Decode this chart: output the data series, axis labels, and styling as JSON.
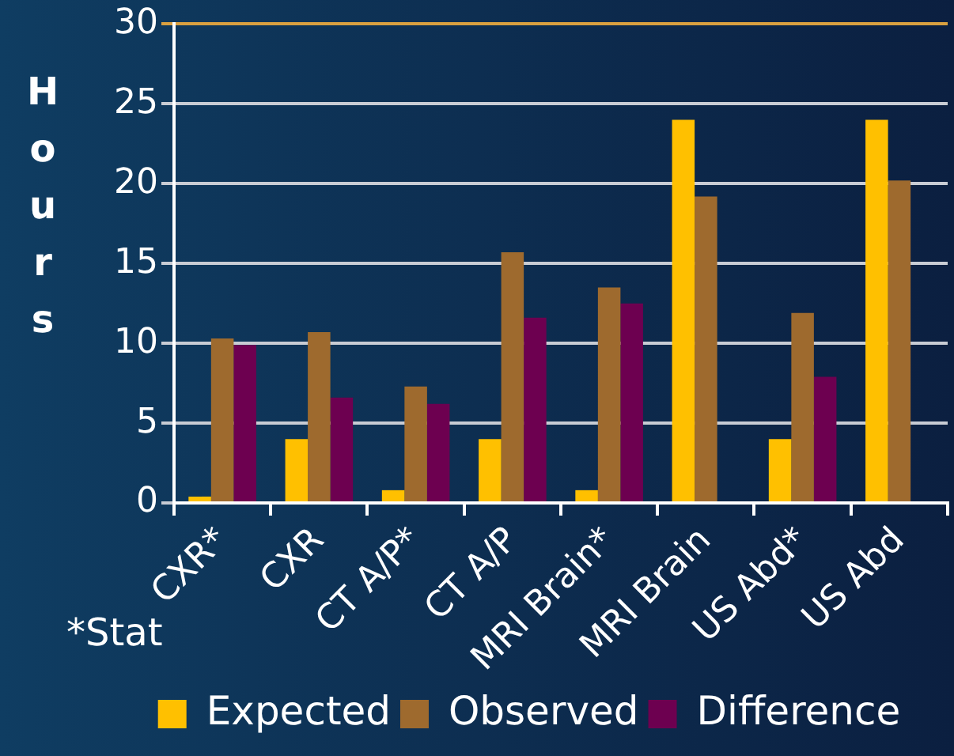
{
  "chart_data": {
    "type": "bar",
    "ylabel": "Hours",
    "categories": [
      "CXR*",
      "CXR",
      "CT A/P*",
      "CT A/P",
      "MRI Brain*",
      "MRI Brain",
      "US Abd*",
      "US Abd"
    ],
    "series": [
      {
        "name": "Expected",
        "color": "#ffc000",
        "values": [
          0.4,
          4,
          0.8,
          4,
          0.8,
          24,
          4,
          24
        ]
      },
      {
        "name": "Observed",
        "color": "#9e6a2e",
        "values": [
          10.3,
          10.7,
          7.3,
          15.7,
          13.5,
          19.2,
          11.9,
          20.2
        ]
      },
      {
        "name": "Difference",
        "color": "#6d0050",
        "values": [
          9.9,
          6.6,
          6.2,
          11.6,
          12.5,
          null,
          7.9,
          null
        ]
      }
    ],
    "ylim": [
      0,
      30
    ],
    "yticks": [
      0,
      5,
      10,
      15,
      20,
      25,
      30
    ],
    "grid": "y",
    "legend": "bottom",
    "annotations": [
      "*Stat"
    ]
  }
}
